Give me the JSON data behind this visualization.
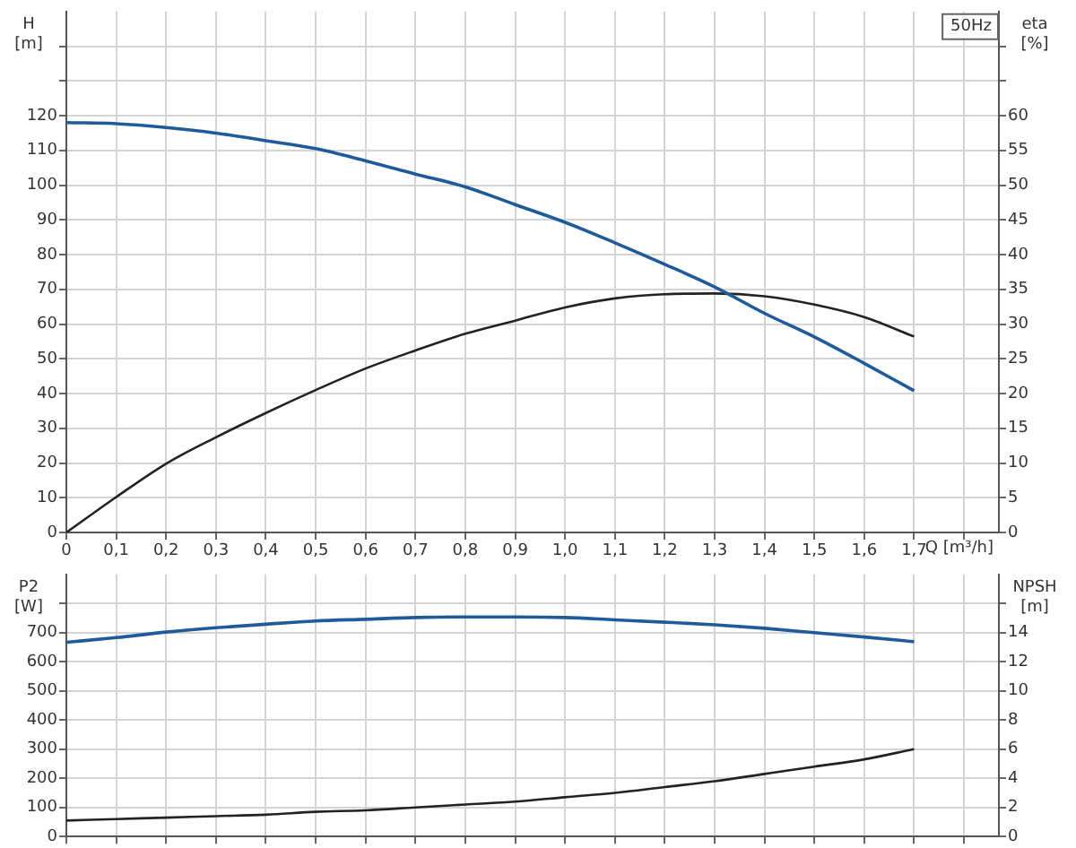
{
  "chart_data": [
    {
      "type": "line",
      "title": "50Hz",
      "xlabel": "Q [m³/h]",
      "ylabel": "H [m]",
      "y2label": "eta [%]",
      "x": [
        0,
        0.1,
        0.2,
        0.3,
        0.4,
        0.5,
        0.6,
        0.7,
        0.8,
        0.9,
        1.0,
        1.1,
        1.2,
        1.3,
        1.4,
        1.5,
        1.6,
        1.7
      ],
      "series": [
        {
          "color": "#1f5a9a",
          "values": [
            118,
            117.7,
            116.6,
            115,
            112.8,
            110.5,
            107,
            103.2,
            99.5,
            94.4,
            89.3,
            83.4,
            77.2,
            70.7,
            63.1,
            56.3,
            48.7,
            40.8
          ]
        },
        {
          "color": "#222222",
          "axis": "y2",
          "values": [
            0,
            5.1,
            9.9,
            13.7,
            17.2,
            20.5,
            23.6,
            26.2,
            28.6,
            30.5,
            32.4,
            33.7,
            34.3,
            34.4,
            34,
            32.8,
            31,
            28.2
          ]
        }
      ],
      "xlim": [
        0,
        1.87
      ],
      "xticks": [
        0,
        {
          "value": 0.1,
          "label": "0,1"
        },
        {
          "value": 0.2,
          "label": "0,2"
        },
        {
          "value": 0.3,
          "label": "0,3"
        },
        {
          "value": 0.4,
          "label": "0,4"
        },
        {
          "value": 0.5,
          "label": "0,5"
        },
        {
          "value": 0.6,
          "label": "0,6"
        },
        {
          "value": 0.7,
          "label": "0,7"
        },
        {
          "value": 0.8,
          "label": "0,8"
        },
        {
          "value": 0.9,
          "label": "0,9"
        },
        {
          "value": 1.0,
          "label": "1,0"
        },
        {
          "value": 1.1,
          "label": "1,1"
        },
        {
          "value": 1.2,
          "label": "1,2"
        },
        {
          "value": 1.3,
          "label": "1,3"
        },
        {
          "value": 1.4,
          "label": "1,4"
        },
        {
          "value": 1.5,
          "label": "1,5"
        },
        {
          "value": 1.6,
          "label": "1,6"
        },
        {
          "value": 1.7,
          "label": "1,7"
        },
        {
          "value": 1.8,
          "label": null
        }
      ],
      "ylim": [
        0,
        150
      ],
      "yticks": [
        0,
        10,
        20,
        30,
        40,
        50,
        60,
        70,
        80,
        90,
        100,
        110,
        120,
        {
          "value": 130,
          "label": null
        },
        {
          "value": 140,
          "label": null
        }
      ],
      "y2lim": [
        0,
        75
      ],
      "y2ticks": [
        0,
        5,
        10,
        15,
        20,
        25,
        30,
        35,
        40,
        45,
        50,
        55,
        60,
        {
          "value": 65,
          "label": null
        },
        {
          "value": 70,
          "label": null
        }
      ],
      "grid": true,
      "legend": false
    },
    {
      "type": "line",
      "ylabel": "P2 [W]",
      "y2label": "NPSH [m]",
      "x": [
        0,
        0.1,
        0.2,
        0.3,
        0.4,
        0.5,
        0.6,
        0.7,
        0.8,
        0.9,
        1.0,
        1.1,
        1.2,
        1.3,
        1.4,
        1.5,
        1.6,
        1.7
      ],
      "series": [
        {
          "color": "#1f5a9a",
          "values": [
            667,
            683,
            702,
            717,
            729,
            740,
            746,
            752,
            754,
            754,
            752,
            744,
            736,
            727,
            715,
            700,
            685,
            669
          ]
        },
        {
          "color": "#222222",
          "axis": "y2",
          "values": [
            1.1,
            1.2,
            1.3,
            1.4,
            1.5,
            1.7,
            1.8,
            2.0,
            2.2,
            2.4,
            2.7,
            3.0,
            3.4,
            3.8,
            4.3,
            4.8,
            5.3,
            6.0
          ]
        }
      ],
      "xlim": [
        0,
        1.87
      ],
      "xticks": [
        0,
        0.1,
        0.2,
        0.3,
        0.4,
        0.5,
        0.6,
        0.7,
        0.8,
        0.9,
        1.0,
        1.1,
        1.2,
        1.3,
        1.4,
        1.5,
        1.6,
        1.7,
        1.8
      ],
      "ylim": [
        0,
        900
      ],
      "yticks": [
        0,
        100,
        200,
        300,
        400,
        500,
        600,
        700,
        {
          "value": 800,
          "label": null
        }
      ],
      "y2lim": [
        0,
        18
      ],
      "y2ticks": [
        0,
        2,
        4,
        6,
        8,
        10,
        12,
        14,
        {
          "value": 16,
          "label": null
        }
      ],
      "grid": true,
      "legend": false,
      "tick_labels": "y"
    }
  ]
}
